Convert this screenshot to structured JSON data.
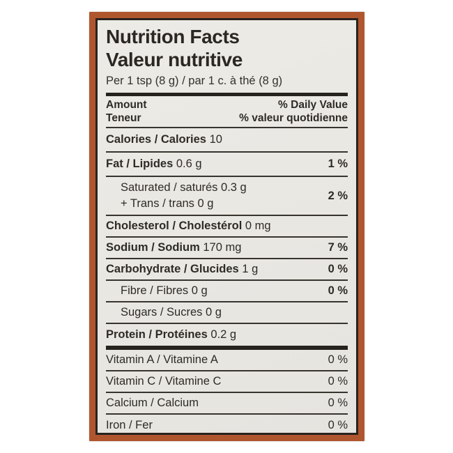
{
  "label": {
    "title_en": "Nutrition Facts",
    "title_fr": "Valeur nutritive",
    "serving": "Per 1 tsp (8 g) / par 1 c. à thé (8 g)",
    "header": {
      "amount_en": "Amount",
      "amount_fr": "Teneur",
      "daily_value_en": "% Daily Value",
      "daily_value_fr": "% valeur quotidienne"
    },
    "colors": {
      "frame_orange": "#b0562f",
      "inner_border_black": "#29231e",
      "label_background": "#e9e7e2",
      "text": "#2e2b27"
    }
  },
  "rows": [
    {
      "name": "Calories / Calories",
      "value": "10",
      "dv": ""
    },
    {
      "name": "Fat / Lipides",
      "value": "0.6 g",
      "dv": "1 %"
    },
    {
      "name": "Saturated / saturés",
      "value": "0.3 g",
      "line2": "+ Trans / trans 0 g",
      "dv": "2 %"
    },
    {
      "name": "Cholesterol / Cholestérol",
      "value": "0 mg",
      "dv": ""
    },
    {
      "name": "Sodium / Sodium",
      "value": "170 mg",
      "dv": "7 %"
    },
    {
      "name": "Carbohydrate / Glucides",
      "value": "1 g",
      "dv": "0 %"
    },
    {
      "name": "Fibre / Fibres",
      "value": "0 g",
      "dv": "0 %"
    },
    {
      "name": "Sugars / Sucres",
      "value": "0 g",
      "dv": ""
    },
    {
      "name": "Protein / Protéines",
      "value": "0.2 g",
      "dv": ""
    }
  ],
  "micronutrients": [
    {
      "name": "Vitamin A / Vitamine A",
      "dv": "0 %"
    },
    {
      "name": "Vitamin C / Vitamine C",
      "dv": "0 %"
    },
    {
      "name": "Calcium / Calcium",
      "dv": "0 %"
    },
    {
      "name": "Iron / Fer",
      "dv": "0 %"
    }
  ]
}
